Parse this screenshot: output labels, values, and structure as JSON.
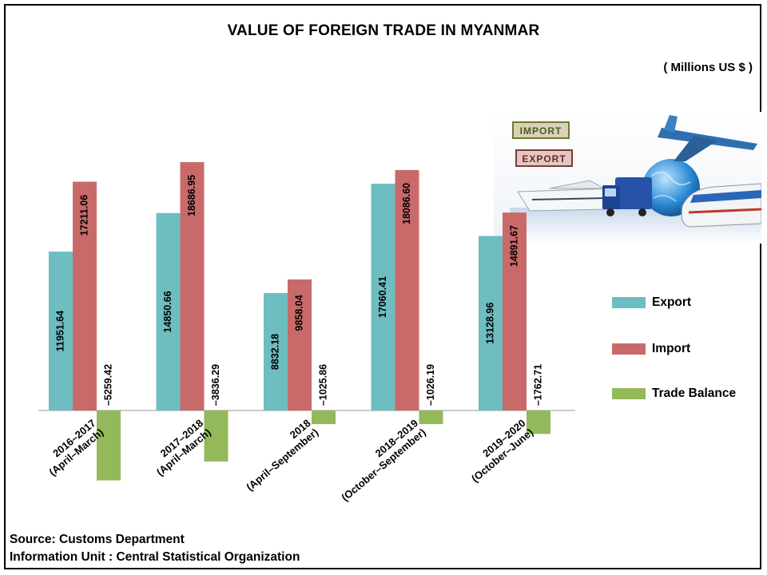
{
  "title": "VALUE OF FOREIGN TRADE  IN MYANMAR",
  "unit": "( Millions US $ )",
  "source_lines": [
    "Source: Customs Department",
    "Information Unit : Central Statistical Organization"
  ],
  "image": {
    "icon": "import-export-transport-illustration",
    "stamp_labels": [
      "IMPORT",
      "EXPORT"
    ]
  },
  "colors": {
    "export": "#6dbdc1",
    "import": "#c96a6a",
    "balance": "#93b95a"
  },
  "chart_data": {
    "type": "bar",
    "title": "VALUE OF FOREIGN TRADE  IN MYANMAR",
    "ylabel": "( Millions US $ )",
    "categories": [
      [
        "2016–2017",
        "(April–March)"
      ],
      [
        "2017–2018",
        "(April–March)"
      ],
      [
        "2018",
        "(April–September)"
      ],
      [
        "2018–2019",
        "(October–September)"
      ],
      [
        "2019–2020",
        "(October–June)"
      ]
    ],
    "series": [
      {
        "name": "Export",
        "key": "export",
        "values": [
          11951.64,
          14850.66,
          8832.18,
          17060.41,
          13128.96
        ],
        "labels": [
          "11951.64",
          "14850.66",
          "8832.18",
          "17060.41",
          "13128.96"
        ]
      },
      {
        "name": "Import",
        "key": "import",
        "values": [
          17211.06,
          18686.95,
          9858.04,
          18086.6,
          14891.67
        ],
        "labels": [
          "17211.06",
          "18686.95",
          "9858.04",
          "18086.60",
          "14891.67"
        ]
      },
      {
        "name": "Trade Balance",
        "key": "balance",
        "values": [
          -5259.42,
          -3836.29,
          -1025.86,
          -1026.19,
          -1762.71
        ],
        "labels": [
          "–5259.42",
          "–3836.29",
          "–1025.86",
          "–1026.19",
          "–1762.71"
        ]
      }
    ],
    "ylim": [
      -5500,
      20000
    ],
    "grid": false,
    "legend": "right"
  }
}
